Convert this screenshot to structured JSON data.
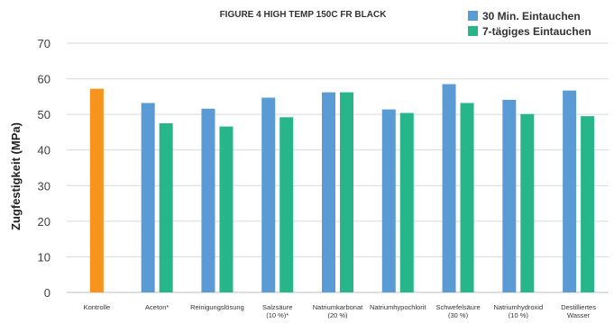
{
  "chart_data": {
    "type": "bar",
    "title": "FIGURE 4 HIGH TEMP 150C FR BLACK",
    "ylabel": "Zugfestigkeit (MPa)",
    "xlabel": "",
    "ylim": [
      0,
      70
    ],
    "yticks": [
      0,
      10,
      20,
      30,
      40,
      50,
      60,
      70
    ],
    "grid": true,
    "legend_position": "top-right",
    "categories": [
      [
        "Kontrolle"
      ],
      [
        "Aceton*"
      ],
      [
        "Reinigungslösung"
      ],
      [
        "Salzsäure",
        "(10 %)*"
      ],
      [
        "Natriumkarbonat",
        "(20 %)"
      ],
      [
        "Natriumhypochlorit"
      ],
      [
        "Schwefelsäure",
        "(30 %)"
      ],
      [
        "Natriumhydroxid",
        "(10 %)"
      ],
      [
        "Destilliertes",
        "Wasser"
      ]
    ],
    "control": {
      "value": 57.2,
      "color": "#F7941D"
    },
    "series": [
      {
        "name": "30 Min. Eintauchen",
        "color": "#5B9BD5",
        "values": [
          null,
          53.2,
          51.6,
          54.7,
          56.2,
          51.4,
          58.5,
          54.1,
          56.7
        ]
      },
      {
        "name": "7-tägiges Eintauchen",
        "color": "#26B68A",
        "values": [
          null,
          47.5,
          46.6,
          49.2,
          56.2,
          50.4,
          53.2,
          50.1,
          49.5
        ]
      }
    ]
  }
}
